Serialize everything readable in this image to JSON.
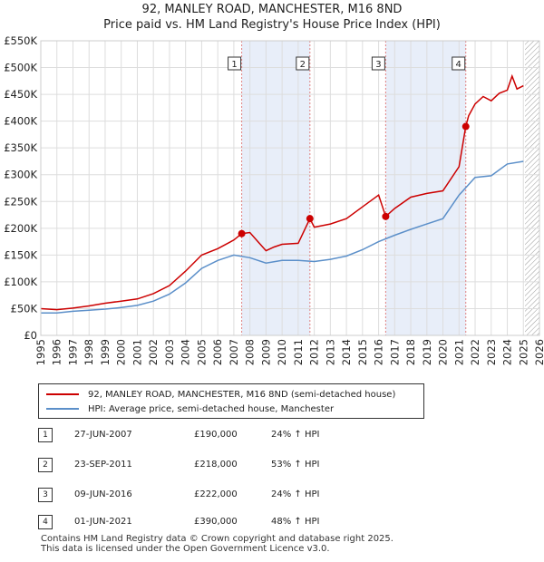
{
  "title_line1": "92, MANLEY ROAD, MANCHESTER, M16 8ND",
  "title_line2": "Price paid vs. HM Land Registry's House Price Index (HPI)",
  "legend": {
    "property_label": "92, MANLEY ROAD, MANCHESTER, M16 8ND (semi-detached house)",
    "hpi_label": "HPI: Average price, semi-detached house, Manchester"
  },
  "colors": {
    "property": "#cc0000",
    "hpi": "#5b8fc9",
    "shade": "#e8eef9",
    "vline": "#e08080"
  },
  "transactions": [
    {
      "num": "1",
      "date": "27-JUN-2007",
      "price": "£190,000",
      "hpi_change": "24% ↑ HPI"
    },
    {
      "num": "2",
      "date": "23-SEP-2011",
      "price": "£218,000",
      "hpi_change": "53% ↑ HPI"
    },
    {
      "num": "3",
      "date": "09-JUN-2016",
      "price": "£222,000",
      "hpi_change": "24% ↑ HPI"
    },
    {
      "num": "4",
      "date": "01-JUN-2021",
      "price": "£390,000",
      "hpi_change": "48% ↑ HPI"
    }
  ],
  "footer_line1": "Contains HM Land Registry data © Crown copyright and database right 2025.",
  "footer_line2": "This data is licensed under the Open Government Licence v3.0.",
  "chart_data": {
    "type": "line",
    "xlim": [
      1995,
      2026
    ],
    "ylim": [
      0,
      550000
    ],
    "yticks": [
      0,
      50000,
      100000,
      150000,
      200000,
      250000,
      300000,
      350000,
      400000,
      450000,
      500000,
      550000
    ],
    "ytick_labels": [
      "£0",
      "£50K",
      "£100K",
      "£150K",
      "£200K",
      "£250K",
      "£300K",
      "£350K",
      "£400K",
      "£450K",
      "£500K",
      "£550K"
    ],
    "xticks": [
      1995,
      1996,
      1997,
      1998,
      1999,
      2000,
      2001,
      2002,
      2003,
      2004,
      2005,
      2006,
      2007,
      2008,
      2009,
      2010,
      2011,
      2012,
      2013,
      2014,
      2015,
      2016,
      2017,
      2018,
      2019,
      2020,
      2021,
      2022,
      2023,
      2024,
      2025,
      2026
    ],
    "sale_points": [
      {
        "label": "1",
        "x": 2007.49,
        "y": 190000
      },
      {
        "label": "2",
        "x": 2011.73,
        "y": 218000
      },
      {
        "label": "3",
        "x": 2016.44,
        "y": 222000
      },
      {
        "label": "4",
        "x": 2021.42,
        "y": 390000
      }
    ],
    "shaded_ranges": [
      [
        2007.49,
        2011.73
      ],
      [
        2016.44,
        2021.42
      ]
    ],
    "future_hatch_from": 2025.1,
    "series": [
      {
        "name": "92, MANLEY ROAD, MANCHESTER, M16 8ND (semi-detached house)",
        "x": [
          1995,
          1996,
          1997,
          1998,
          1999,
          2000,
          2001,
          2002,
          2003,
          2004,
          2005,
          2006,
          2007,
          2007.49,
          2008,
          2008.5,
          2009,
          2009.5,
          2010,
          2011,
          2011.73,
          2012,
          2013,
          2014,
          2015,
          2016,
          2016.44,
          2017,
          2018,
          2019,
          2020,
          2021,
          2021.42,
          2021.6,
          2022,
          2022.5,
          2023,
          2023.5,
          2024,
          2024.3,
          2024.6,
          2025
        ],
        "y": [
          50000,
          48000,
          51000,
          55000,
          60000,
          64000,
          68000,
          78000,
          93000,
          120000,
          150000,
          162000,
          178000,
          190000,
          192000,
          175000,
          158000,
          165000,
          170000,
          172000,
          218000,
          202000,
          208000,
          218000,
          240000,
          262000,
          222000,
          237000,
          258000,
          265000,
          270000,
          315000,
          390000,
          410000,
          432000,
          446000,
          438000,
          452000,
          458000,
          484000,
          460000,
          466000
        ]
      },
      {
        "name": "HPI: Average price, semi-detached house, Manchester",
        "x": [
          1995,
          1996,
          1997,
          1998,
          1999,
          2000,
          2001,
          2002,
          2003,
          2004,
          2005,
          2006,
          2007,
          2008,
          2009,
          2010,
          2011,
          2012,
          2013,
          2014,
          2015,
          2016,
          2017,
          2018,
          2019,
          2020,
          2021,
          2022,
          2023,
          2024,
          2025
        ],
        "y": [
          42000,
          42000,
          45000,
          47000,
          49000,
          52000,
          56000,
          64000,
          77000,
          98000,
          125000,
          140000,
          150000,
          145000,
          135000,
          140000,
          140000,
          138000,
          142000,
          148000,
          160000,
          175000,
          187000,
          198000,
          208000,
          218000,
          262000,
          295000,
          298000,
          320000,
          325000
        ]
      }
    ]
  }
}
